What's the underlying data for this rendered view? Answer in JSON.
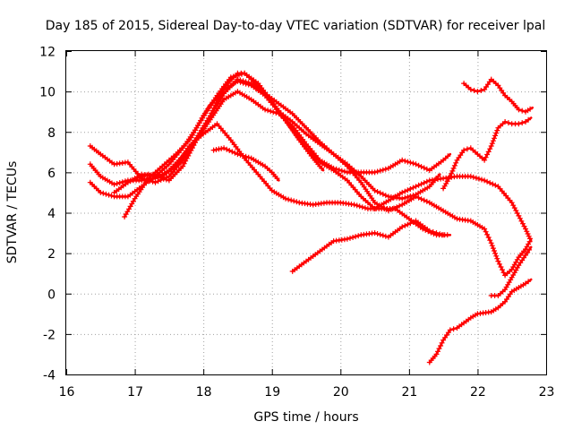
{
  "chart_data": {
    "type": "line",
    "title": "Day 185 of 2015, Sidereal Day-to-day VTEC variation (SDTVAR) for receiver lpal",
    "xlabel": "GPS time / hours",
    "ylabel": "SDTVAR / TECUs",
    "xlim": [
      16,
      23
    ],
    "ylim": [
      -4,
      12
    ],
    "xticks": [
      "16",
      "17",
      "18",
      "19",
      "20",
      "21",
      "22",
      "23"
    ],
    "yticks": [
      "-4",
      "-2",
      "0",
      "2",
      "4",
      "6",
      "8",
      "10",
      "12"
    ],
    "grid": true,
    "series_color": "#ff0000",
    "marker": "cross",
    "series": [
      {
        "name": "s1",
        "x": [
          16.35,
          16.5,
          16.7,
          16.9,
          17.1,
          17.3,
          17.5,
          17.7,
          17.9,
          18.1,
          18.3,
          18.5,
          18.7,
          18.9,
          19.1,
          19.3,
          19.5,
          19.7,
          19.9,
          20.1,
          20.3,
          20.5,
          20.7,
          20.9,
          21.1,
          21.3,
          21.5,
          21.7,
          21.9,
          22.1,
          22.3,
          22.5,
          22.7,
          22.78
        ],
        "y": [
          5.5,
          5.0,
          4.8,
          4.8,
          5.3,
          5.8,
          6.4,
          7.2,
          8.2,
          9.3,
          10.1,
          10.5,
          10.3,
          9.8,
          9.0,
          8.1,
          7.2,
          6.5,
          6.1,
          5.6,
          4.8,
          4.2,
          4.6,
          5.0,
          5.3,
          5.6,
          5.7,
          5.8,
          5.8,
          5.6,
          5.3,
          4.5,
          3.2,
          2.6
        ]
      },
      {
        "name": "s2",
        "x": [
          16.35,
          16.5,
          16.7,
          16.9,
          17.1,
          17.3,
          17.5,
          17.7,
          17.9,
          18.1,
          18.3,
          18.5,
          18.7,
          18.9,
          19.1,
          19.3,
          19.5,
          19.7,
          19.9,
          20.1,
          20.3,
          20.5,
          20.7,
          20.9,
          21.1,
          21.3,
          21.5,
          21.7,
          21.9,
          22.1,
          22.2,
          22.3,
          22.4,
          22.5,
          22.6,
          22.7,
          22.78
        ],
        "y": [
          6.4,
          5.8,
          5.4,
          5.6,
          5.6,
          5.7,
          6.1,
          6.8,
          7.7,
          8.8,
          9.9,
          10.6,
          10.4,
          9.9,
          9.4,
          8.9,
          8.2,
          7.5,
          6.9,
          6.3,
          5.5,
          4.5,
          4.1,
          4.4,
          4.8,
          4.5,
          4.1,
          3.7,
          3.6,
          3.2,
          2.5,
          1.6,
          0.9,
          1.2,
          1.8,
          2.2,
          2.7
        ]
      },
      {
        "name": "s3",
        "x": [
          16.35,
          16.5,
          16.7,
          16.9,
          17.1,
          17.3,
          17.5,
          17.7,
          17.9,
          18.1,
          18.3,
          18.5,
          18.6,
          18.7,
          18.9,
          19.1,
          19.3,
          19.5,
          19.7,
          19.9,
          20.1,
          20.3,
          20.5,
          20.7,
          20.9,
          21.1,
          21.3,
          21.45
        ],
        "y": [
          7.3,
          6.9,
          6.4,
          6.5,
          5.7,
          5.5,
          5.8,
          6.6,
          7.6,
          8.8,
          10.2,
          10.9,
          10.9,
          10.6,
          9.8,
          9.0,
          8.5,
          7.9,
          7.4,
          6.9,
          6.4,
          5.8,
          5.1,
          4.8,
          4.7,
          4.9,
          5.3,
          5.9
        ]
      },
      {
        "name": "s4",
        "x": [
          16.85,
          17.0,
          17.2,
          17.4,
          17.6,
          17.8,
          18.0,
          18.2,
          18.4,
          18.6,
          18.8,
          19.0,
          19.2,
          19.4,
          19.6,
          19.75
        ],
        "y": [
          3.8,
          4.7,
          5.7,
          6.3,
          6.9,
          7.6,
          8.8,
          9.8,
          10.7,
          10.9,
          10.4,
          9.5,
          8.6,
          7.6,
          6.7,
          6.1
        ]
      },
      {
        "name": "s5",
        "x": [
          16.7,
          16.9,
          17.1,
          17.3,
          17.5,
          17.7,
          17.9,
          18.1,
          18.3,
          18.5,
          18.7,
          18.9,
          19.1,
          19.3,
          19.5,
          19.7,
          19.9,
          20.1,
          20.3,
          20.5,
          20.7,
          20.9,
          21.1,
          21.3,
          21.5,
          21.6
        ],
        "y": [
          5.0,
          5.5,
          5.9,
          5.8,
          5.6,
          6.3,
          7.6,
          8.6,
          9.6,
          10.0,
          9.6,
          9.1,
          8.9,
          8.3,
          7.4,
          6.6,
          6.2,
          6.0,
          6.0,
          6.0,
          6.2,
          6.6,
          6.4,
          6.1,
          6.6,
          6.9
        ]
      },
      {
        "name": "s6",
        "x": [
          17.0,
          17.2,
          17.4,
          17.6,
          17.8,
          18.0,
          18.2,
          18.4,
          18.6,
          18.8,
          19.0,
          19.2,
          19.4,
          19.6,
          19.8,
          20.0,
          20.2,
          20.4,
          20.6,
          20.8,
          21.0,
          21.2,
          21.4,
          21.6
        ],
        "y": [
          5.7,
          5.9,
          5.8,
          6.3,
          7.3,
          7.9,
          8.4,
          7.6,
          6.7,
          5.9,
          5.1,
          4.7,
          4.5,
          4.4,
          4.5,
          4.5,
          4.4,
          4.2,
          4.2,
          4.2,
          3.7,
          3.2,
          2.9,
          2.9
        ]
      },
      {
        "name": "s7",
        "x": [
          18.15,
          18.3,
          18.5,
          18.7,
          18.9,
          19.0,
          19.1
        ],
        "y": [
          7.1,
          7.2,
          6.9,
          6.7,
          6.3,
          6.0,
          5.6
        ]
      },
      {
        "name": "s8",
        "x": [
          19.3,
          19.5,
          19.7,
          19.9,
          20.1,
          20.3,
          20.5,
          20.7,
          20.9,
          21.1,
          21.3,
          21.4,
          21.5,
          21.55
        ],
        "y": [
          1.1,
          1.6,
          2.1,
          2.6,
          2.7,
          2.9,
          3.0,
          2.8,
          3.3,
          3.6,
          3.1,
          3.0,
          2.9,
          2.9
        ]
      },
      {
        "name": "s9",
        "x": [
          21.3,
          21.4,
          21.5,
          21.6,
          21.7,
          21.9,
          22.0,
          22.2,
          22.3,
          22.4,
          22.5,
          22.6,
          22.7,
          22.78
        ],
        "y": [
          -3.4,
          -3.0,
          -2.3,
          -1.8,
          -1.7,
          -1.2,
          -1.0,
          -0.9,
          -0.7,
          -0.4,
          0.1,
          0.3,
          0.5,
          0.7
        ]
      },
      {
        "name": "s10",
        "x": [
          22.2,
          22.3,
          22.4,
          22.5,
          22.6,
          22.7,
          22.78
        ],
        "y": [
          -0.1,
          -0.1,
          0.2,
          0.8,
          1.4,
          1.9,
          2.3
        ]
      },
      {
        "name": "s11",
        "x": [
          21.8,
          21.9,
          22.0,
          22.1,
          22.2,
          22.3,
          22.4,
          22.5,
          22.6,
          22.7,
          22.8
        ],
        "y": [
          10.4,
          10.1,
          10.0,
          10.1,
          10.6,
          10.3,
          9.8,
          9.5,
          9.1,
          9.0,
          9.2
        ]
      },
      {
        "name": "s12",
        "x": [
          21.5,
          21.6,
          21.7,
          21.8,
          21.9,
          22.0,
          22.1,
          22.2,
          22.3,
          22.4,
          22.5,
          22.6,
          22.7,
          22.78
        ],
        "y": [
          5.2,
          5.8,
          6.6,
          7.1,
          7.2,
          6.9,
          6.6,
          7.3,
          8.2,
          8.5,
          8.4,
          8.4,
          8.5,
          8.7
        ]
      }
    ]
  }
}
